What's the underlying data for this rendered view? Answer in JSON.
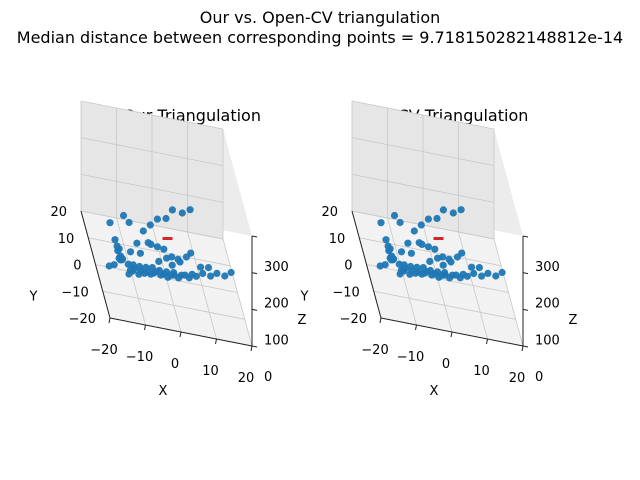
{
  "figure": {
    "suptitle_line1": "Our vs. Open-CV triangulation",
    "suptitle_line2": "Median distance between corresponding points = 9.718150282148812e-14"
  },
  "colors": {
    "points": "#1f77b4",
    "camera": "#d62728",
    "pane_back": "#f2f2f2",
    "pane_side": "#e6e6e6",
    "pane_floor": "#ececec",
    "grid": "#c8c8c8"
  },
  "chart_data": [
    {
      "type": "scatter",
      "title": "Our Triangulation",
      "xlabel": "X",
      "ylabel": "Y",
      "zlabel": "Z",
      "xlim": [
        -20,
        20
      ],
      "ylim": [
        -20,
        20
      ],
      "zlim": [
        0,
        300
      ],
      "x_ticks": [
        "−20",
        "−10",
        "0",
        "10",
        "20"
      ],
      "y_ticks": [
        "−20",
        "−10",
        "0",
        "10",
        "20"
      ],
      "z_ticks": [
        "0",
        "100",
        "200",
        "300"
      ],
      "camera_marker": "red",
      "points": [
        {
          "x": -20,
          "y": -20,
          "z": 260
        },
        {
          "x": -19,
          "y": -22,
          "z": 230
        },
        {
          "x": -18,
          "y": -20,
          "z": 200
        },
        {
          "x": -17,
          "y": -18,
          "z": 180
        },
        {
          "x": -17,
          "y": -16,
          "z": 160
        },
        {
          "x": -16,
          "y": -15,
          "z": 140
        },
        {
          "x": -16,
          "y": -13,
          "z": 120
        },
        {
          "x": -15,
          "y": -12,
          "z": 110
        },
        {
          "x": -15,
          "y": -10,
          "z": 95
        },
        {
          "x": -14,
          "y": -8,
          "z": 85
        },
        {
          "x": -13,
          "y": -12,
          "z": 75
        },
        {
          "x": -12,
          "y": -9,
          "z": 65
        },
        {
          "x": -12,
          "y": -6,
          "z": 60
        },
        {
          "x": -11,
          "y": -7,
          "z": 50
        },
        {
          "x": -10,
          "y": -5,
          "z": 45
        },
        {
          "x": -10,
          "y": -3,
          "z": 40
        },
        {
          "x": -9,
          "y": -6,
          "z": 38
        },
        {
          "x": -8,
          "y": -4,
          "z": 35
        },
        {
          "x": -8,
          "y": -2,
          "z": 32
        },
        {
          "x": -7,
          "y": -4,
          "z": 30
        },
        {
          "x": -6,
          "y": -3,
          "z": 28
        },
        {
          "x": -6,
          "y": -1,
          "z": 26
        },
        {
          "x": -5,
          "y": -3,
          "z": 24
        },
        {
          "x": -4,
          "y": -2,
          "z": 22
        },
        {
          "x": -4,
          "y": 0,
          "z": 22
        },
        {
          "x": -3,
          "y": -1,
          "z": 20
        },
        {
          "x": -2,
          "y": -2,
          "z": 20
        },
        {
          "x": -2,
          "y": 0,
          "z": 18
        },
        {
          "x": -1,
          "y": -1,
          "z": 18
        },
        {
          "x": 0,
          "y": -2,
          "z": 18
        },
        {
          "x": 0,
          "y": 0,
          "z": 18
        },
        {
          "x": 1,
          "y": -1,
          "z": 18
        },
        {
          "x": 2,
          "y": -1,
          "z": 20
        },
        {
          "x": 2,
          "y": 0,
          "z": 20
        },
        {
          "x": 3,
          "y": -2,
          "z": 22
        },
        {
          "x": 4,
          "y": -1,
          "z": 24
        },
        {
          "x": 5,
          "y": -1,
          "z": 26
        },
        {
          "x": 6,
          "y": -2,
          "z": 28
        },
        {
          "x": 7,
          "y": -1,
          "z": 32
        },
        {
          "x": 8,
          "y": -2,
          "z": 36
        },
        {
          "x": 10,
          "y": -1,
          "z": 40
        },
        {
          "x": 12,
          "y": -2,
          "z": 44
        },
        {
          "x": 14,
          "y": -1,
          "z": 48
        },
        {
          "x": 16,
          "y": -2,
          "z": 52
        },
        {
          "x": 18,
          "y": -1,
          "z": 58
        },
        {
          "x": -13,
          "y": -14,
          "z": 150
        },
        {
          "x": -11,
          "y": -13,
          "z": 170
        },
        {
          "x": -9,
          "y": -12,
          "z": 200
        },
        {
          "x": -7,
          "y": -12,
          "z": 220
        },
        {
          "x": -5,
          "y": -12,
          "z": 240
        },
        {
          "x": -3,
          "y": -14,
          "z": 260
        },
        {
          "x": -1,
          "y": -13,
          "z": 280
        },
        {
          "x": 2,
          "y": -12,
          "z": 270
        },
        {
          "x": 4,
          "y": -13,
          "z": 290
        },
        {
          "x": -6,
          "y": -8,
          "z": 140
        },
        {
          "x": -4,
          "y": -7,
          "z": 130
        },
        {
          "x": -2,
          "y": -6,
          "z": 120
        },
        {
          "x": 0,
          "y": -7,
          "z": 110
        },
        {
          "x": 2,
          "y": -6,
          "z": 100
        },
        {
          "x": -9,
          "y": -8,
          "z": 110
        },
        {
          "x": -7,
          "y": -9,
          "z": 150
        },
        {
          "x": 1,
          "y": -3,
          "z": 60
        },
        {
          "x": 3,
          "y": -4,
          "z": 80
        },
        {
          "x": 5,
          "y": -3,
          "z": 90
        },
        {
          "x": -3,
          "y": -4,
          "z": 70
        },
        {
          "x": -1,
          "y": -5,
          "z": 90
        },
        {
          "x": 6,
          "y": -4,
          "z": 110
        },
        {
          "x": 9,
          "y": -3,
          "z": 70
        },
        {
          "x": 11,
          "y": -4,
          "z": 80
        },
        {
          "x": -18,
          "y": -16,
          "z": 120
        },
        {
          "x": -19,
          "y": -14,
          "z": 100
        },
        {
          "x": -14,
          "y": -17,
          "z": 250
        },
        {
          "x": -16,
          "y": -19,
          "z": 280
        }
      ]
    },
    {
      "type": "scatter",
      "title": "CV Triangulation",
      "xlabel": "X",
      "ylabel": "Y",
      "zlabel": "Z",
      "xlim": [
        -20,
        20
      ],
      "ylim": [
        -20,
        20
      ],
      "zlim": [
        0,
        300
      ],
      "x_ticks": [
        "−20",
        "−10",
        "0",
        "10",
        "20"
      ],
      "y_ticks": [
        "−20",
        "−10",
        "0",
        "10",
        "20"
      ],
      "z_ticks": [
        "0",
        "100",
        "200",
        "300"
      ],
      "camera_marker": "red",
      "points": [
        {
          "x": -20,
          "y": -20,
          "z": 260
        },
        {
          "x": -19,
          "y": -22,
          "z": 230
        },
        {
          "x": -18,
          "y": -20,
          "z": 200
        },
        {
          "x": -17,
          "y": -18,
          "z": 180
        },
        {
          "x": -17,
          "y": -16,
          "z": 160
        },
        {
          "x": -16,
          "y": -15,
          "z": 140
        },
        {
          "x": -16,
          "y": -13,
          "z": 120
        },
        {
          "x": -15,
          "y": -12,
          "z": 110
        },
        {
          "x": -15,
          "y": -10,
          "z": 95
        },
        {
          "x": -14,
          "y": -8,
          "z": 85
        },
        {
          "x": -13,
          "y": -12,
          "z": 75
        },
        {
          "x": -12,
          "y": -9,
          "z": 65
        },
        {
          "x": -12,
          "y": -6,
          "z": 60
        },
        {
          "x": -11,
          "y": -7,
          "z": 50
        },
        {
          "x": -10,
          "y": -5,
          "z": 45
        },
        {
          "x": -10,
          "y": -3,
          "z": 40
        },
        {
          "x": -9,
          "y": -6,
          "z": 38
        },
        {
          "x": -8,
          "y": -4,
          "z": 35
        },
        {
          "x": -8,
          "y": -2,
          "z": 32
        },
        {
          "x": -7,
          "y": -4,
          "z": 30
        },
        {
          "x": -6,
          "y": -3,
          "z": 28
        },
        {
          "x": -6,
          "y": -1,
          "z": 26
        },
        {
          "x": -5,
          "y": -3,
          "z": 24
        },
        {
          "x": -4,
          "y": -2,
          "z": 22
        },
        {
          "x": -4,
          "y": 0,
          "z": 22
        },
        {
          "x": -3,
          "y": -1,
          "z": 20
        },
        {
          "x": -2,
          "y": -2,
          "z": 20
        },
        {
          "x": -2,
          "y": 0,
          "z": 18
        },
        {
          "x": -1,
          "y": -1,
          "z": 18
        },
        {
          "x": 0,
          "y": -2,
          "z": 18
        },
        {
          "x": 0,
          "y": 0,
          "z": 18
        },
        {
          "x": 1,
          "y": -1,
          "z": 18
        },
        {
          "x": 2,
          "y": -1,
          "z": 20
        },
        {
          "x": 2,
          "y": 0,
          "z": 20
        },
        {
          "x": 3,
          "y": -2,
          "z": 22
        },
        {
          "x": 4,
          "y": -1,
          "z": 24
        },
        {
          "x": 5,
          "y": -1,
          "z": 26
        },
        {
          "x": 6,
          "y": -2,
          "z": 28
        },
        {
          "x": 7,
          "y": -1,
          "z": 32
        },
        {
          "x": 8,
          "y": -2,
          "z": 36
        },
        {
          "x": 10,
          "y": -1,
          "z": 40
        },
        {
          "x": 12,
          "y": -2,
          "z": 44
        },
        {
          "x": 14,
          "y": -1,
          "z": 48
        },
        {
          "x": 16,
          "y": -2,
          "z": 52
        },
        {
          "x": 18,
          "y": -1,
          "z": 58
        },
        {
          "x": -13,
          "y": -14,
          "z": 150
        },
        {
          "x": -11,
          "y": -13,
          "z": 170
        },
        {
          "x": -9,
          "y": -12,
          "z": 200
        },
        {
          "x": -7,
          "y": -12,
          "z": 220
        },
        {
          "x": -5,
          "y": -12,
          "z": 240
        },
        {
          "x": -3,
          "y": -14,
          "z": 260
        },
        {
          "x": -1,
          "y": -13,
          "z": 280
        },
        {
          "x": 2,
          "y": -12,
          "z": 270
        },
        {
          "x": 4,
          "y": -13,
          "z": 290
        },
        {
          "x": -6,
          "y": -8,
          "z": 140
        },
        {
          "x": -4,
          "y": -7,
          "z": 130
        },
        {
          "x": -2,
          "y": -6,
          "z": 120
        },
        {
          "x": 0,
          "y": -7,
          "z": 110
        },
        {
          "x": 2,
          "y": -6,
          "z": 100
        },
        {
          "x": -9,
          "y": -8,
          "z": 110
        },
        {
          "x": -7,
          "y": -9,
          "z": 150
        },
        {
          "x": 1,
          "y": -3,
          "z": 60
        },
        {
          "x": 3,
          "y": -4,
          "z": 80
        },
        {
          "x": 5,
          "y": -3,
          "z": 90
        },
        {
          "x": -3,
          "y": -4,
          "z": 70
        },
        {
          "x": -1,
          "y": -5,
          "z": 90
        },
        {
          "x": 6,
          "y": -4,
          "z": 110
        },
        {
          "x": 9,
          "y": -3,
          "z": 70
        },
        {
          "x": 11,
          "y": -4,
          "z": 80
        },
        {
          "x": -18,
          "y": -16,
          "z": 120
        },
        {
          "x": -19,
          "y": -14,
          "z": 100
        },
        {
          "x": -14,
          "y": -17,
          "z": 250
        },
        {
          "x": -16,
          "y": -19,
          "z": 280
        }
      ]
    }
  ]
}
